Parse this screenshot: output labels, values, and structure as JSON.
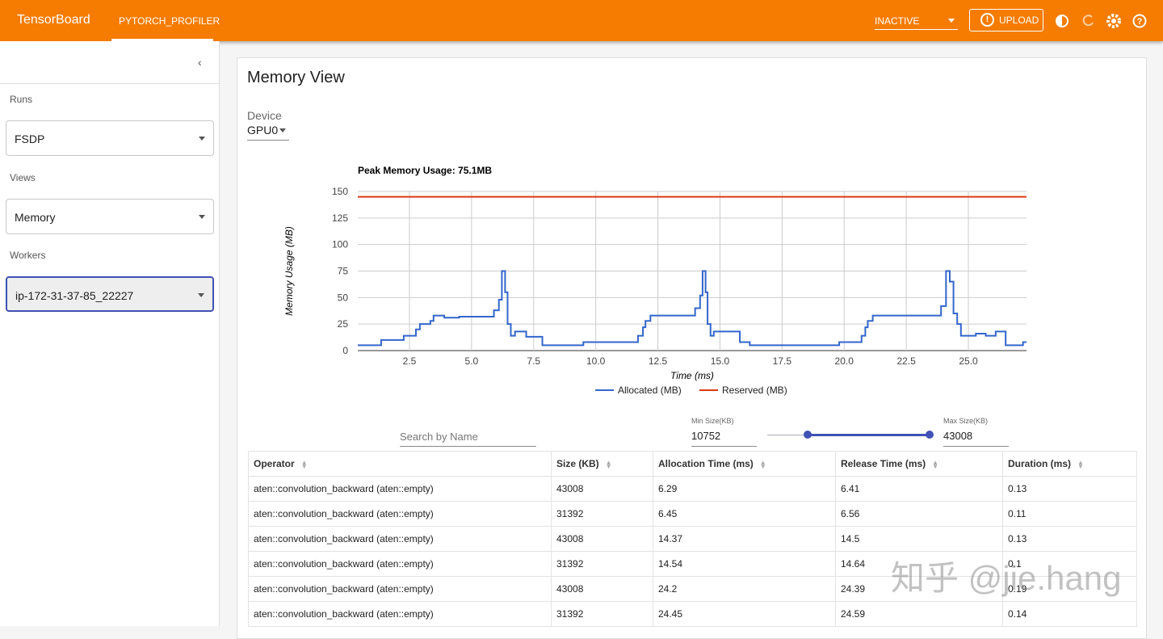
{
  "header": {
    "brand": "TensorBoard",
    "tab": "PYTORCH_PROFILER",
    "status": "INACTIVE",
    "upload": "UPLOAD"
  },
  "sidebar": {
    "runs_label": "Runs",
    "run": "FSDP",
    "views_label": "Views",
    "view": "Memory",
    "workers_label": "Workers",
    "worker": "ip-172-31-37-85_22227"
  },
  "main": {
    "title": "Memory View",
    "device_label": "Device",
    "device": "GPU0",
    "search_placeholder": "Search by Name",
    "min_label": "Min Size(KB)",
    "min_value": 10752,
    "max_label": "Max Size(KB)",
    "max_value": 43008
  },
  "chart_data": {
    "type": "line",
    "title": "Peak Memory Usage: 75.1MB",
    "x_label": "Time (ms)",
    "y_label": "Memory Usage (MB)",
    "x": [
      0.42,
      1.36,
      1.36,
      2.27,
      2.27,
      2.76,
      2.76,
      2.92,
      2.92,
      3.34,
      3.34,
      3.47,
      3.47,
      3.9,
      3.9,
      4.5,
      4.5,
      5.9,
      5.9,
      6.1,
      6.1,
      6.22,
      6.22,
      6.35,
      6.35,
      6.45,
      6.45,
      6.58,
      6.58,
      6.75,
      6.75,
      7.2,
      7.2,
      7.85,
      7.85,
      9.5,
      9.5,
      11.7,
      11.7,
      11.9,
      11.9,
      12.0,
      12.0,
      12.2,
      12.2,
      14.0,
      14.0,
      14.2,
      14.2,
      14.3,
      14.3,
      14.42,
      14.42,
      14.5,
      14.5,
      14.62,
      14.62,
      14.75,
      14.75,
      15.8,
      15.8,
      16.2,
      16.2,
      19.8,
      19.8,
      20.7,
      20.7,
      20.85,
      20.85,
      20.95,
      20.95,
      21.15,
      21.15,
      23.9,
      23.9,
      24.1,
      24.1,
      24.25,
      24.25,
      24.4,
      24.4,
      24.55,
      24.55,
      24.7,
      24.7,
      25.3,
      25.3,
      25.7,
      25.7,
      26.1,
      26.1,
      26.5,
      26.5,
      27.2,
      27.2,
      27.34
    ],
    "series": [
      {
        "name": "Allocated (MB)",
        "color": "#3366cc",
        "values": [
          5,
          5,
          10,
          10,
          14,
          14,
          20,
          20,
          25,
          25,
          28,
          28,
          33,
          33,
          31,
          31,
          32,
          32,
          38,
          38,
          48,
          48,
          75,
          75,
          55,
          55,
          25,
          25,
          14,
          14,
          18,
          18,
          13,
          13,
          5,
          5,
          8,
          8,
          14,
          14,
          22,
          22,
          28,
          28,
          33,
          33,
          40,
          40,
          52,
          52,
          75,
          75,
          55,
          55,
          25,
          25,
          14,
          14,
          18,
          18,
          8,
          8,
          5,
          5,
          8,
          8,
          14,
          14,
          22,
          22,
          28,
          28,
          33,
          33,
          42,
          42,
          75,
          75,
          65,
          65,
          35,
          35,
          25,
          25,
          14,
          14,
          16,
          16,
          14,
          14,
          18,
          18,
          5,
          5,
          8,
          8
        ]
      },
      {
        "name": "Reserved (MB)",
        "color": "#dc3912",
        "values": [
          145,
          145,
          145,
          145,
          145,
          145,
          145,
          145,
          145,
          145,
          145,
          145,
          145,
          145,
          145,
          145,
          145,
          145,
          145,
          145,
          145,
          145,
          145,
          145,
          145,
          145,
          145,
          145,
          145,
          145,
          145,
          145,
          145,
          145,
          145,
          145,
          145,
          145,
          145,
          145,
          145,
          145,
          145,
          145,
          145,
          145,
          145,
          145,
          145,
          145,
          145,
          145,
          145,
          145,
          145,
          145,
          145,
          145,
          145,
          145,
          145,
          145,
          145,
          145,
          145,
          145,
          145,
          145,
          145,
          145,
          145,
          145,
          145,
          145,
          145,
          145,
          145,
          145,
          145,
          145,
          145,
          145,
          145,
          145,
          145,
          145,
          145,
          145,
          145,
          145,
          145,
          145,
          145,
          145,
          145,
          145
        ]
      }
    ],
    "xlim": [
      0.42,
      27.34
    ],
    "ylim": [
      0,
      150
    ],
    "xticks": [
      2.5,
      {
        "value": 5,
        "label": "5.0"
      },
      7.5,
      {
        "value": 10,
        "label": "10.0"
      },
      12.5,
      {
        "value": 15,
        "label": "15.0"
      },
      17.5,
      {
        "value": 20,
        "label": "20.0"
      },
      22.5,
      {
        "value": 25,
        "label": "25.0"
      }
    ],
    "yticks": [
      0,
      25,
      50,
      75,
      100,
      125,
      150
    ],
    "grid": true,
    "legend": "bottom"
  },
  "table": {
    "headers": [
      "Operator",
      "Size (KB)",
      "Allocation Time (ms)",
      "Release Time (ms)",
      "Duration (ms)"
    ],
    "rows": [
      [
        "aten::convolution_backward (aten::empty)",
        43008,
        6.29,
        6.41,
        0.13
      ],
      [
        "aten::convolution_backward (aten::empty)",
        31392,
        6.45,
        6.56,
        0.11
      ],
      [
        "aten::convolution_backward (aten::empty)",
        43008,
        14.37,
        14.5,
        0.13
      ],
      [
        "aten::convolution_backward (aten::empty)",
        31392,
        14.54,
        14.64,
        0.1
      ],
      [
        "aten::convolution_backward (aten::empty)",
        43008,
        24.2,
        24.39,
        0.19
      ],
      [
        "aten::convolution_backward (aten::empty)",
        31392,
        24.45,
        24.59,
        0.14
      ]
    ]
  },
  "watermark": "知乎 @jie.hang"
}
